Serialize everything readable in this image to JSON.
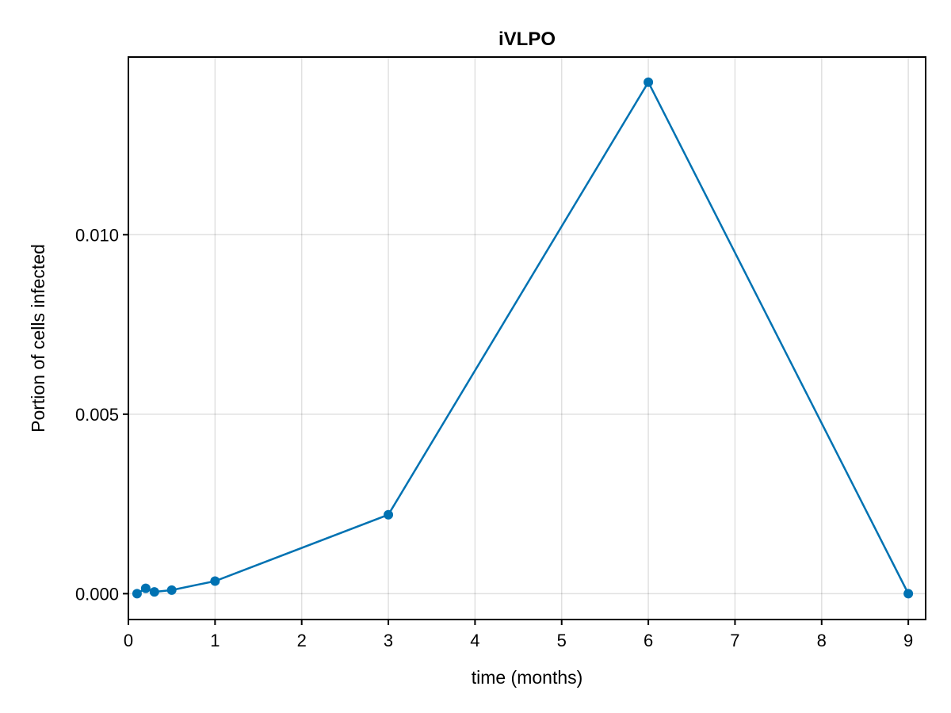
{
  "chart_data": {
    "type": "line",
    "title": "iVLPO",
    "xlabel": "time (months)",
    "ylabel": "Portion of cells infected",
    "xlim": [
      0,
      9.2
    ],
    "ylim": [
      -0.00072,
      0.01495
    ],
    "x_ticks": [
      0,
      1,
      2,
      3,
      4,
      5,
      6,
      7,
      8,
      9
    ],
    "x_tick_labels": [
      "0",
      "1",
      "2",
      "3",
      "4",
      "5",
      "6",
      "7",
      "8",
      "9"
    ],
    "y_ticks": [
      0.0,
      0.005,
      0.01
    ],
    "y_tick_labels": [
      "0.000",
      "0.005",
      "0.010"
    ],
    "grid": true,
    "legend": "none",
    "series": [
      {
        "color": "#0072b2",
        "marker": "circle",
        "x": [
          0.1,
          0.2,
          0.3,
          0.5,
          1,
          3,
          6,
          9
        ],
        "y": [
          0.0,
          0.00015,
          5e-05,
          0.0001,
          0.00035,
          0.0022,
          0.01425,
          0.0
        ]
      }
    ]
  }
}
